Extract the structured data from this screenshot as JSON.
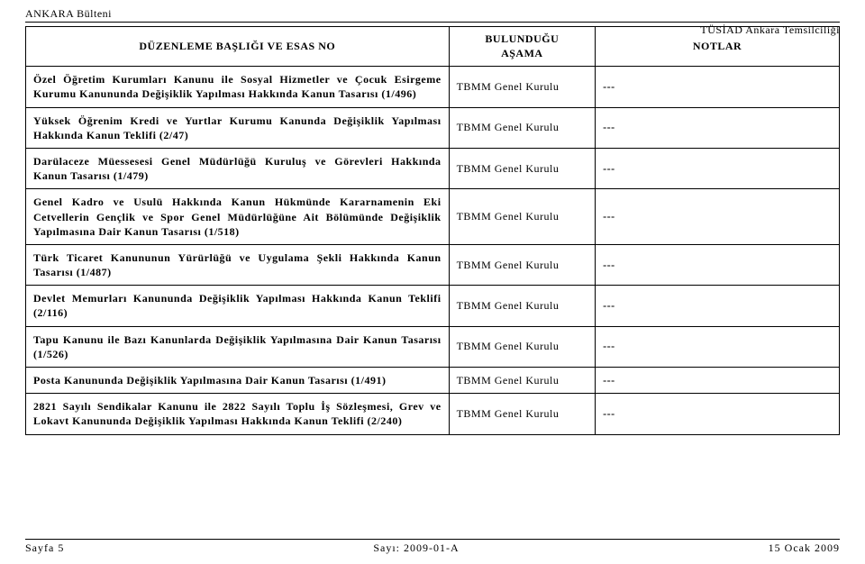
{
  "header": {
    "left": "ANKARA Bülteni",
    "right": "TÜSİAD Ankara Temsilciliği"
  },
  "table": {
    "columns": {
      "title": "DÜZENLEME BAŞLIĞI VE ESAS NO",
      "stage": "BULUNDUĞU\nAŞAMA",
      "notes": "NOTLAR"
    },
    "rows": [
      {
        "title": "Özel Öğretim Kurumları Kanunu ile Sosyal Hizmetler ve Çocuk Esirgeme Kurumu Kanununda Değişiklik Yapılması Hakkında Kanun Tasarısı (1/496)",
        "stage": "TBMM Genel Kurulu",
        "notes": "---"
      },
      {
        "title": "Yüksek Öğrenim Kredi ve Yurtlar Kurumu Kanunda Değişiklik Yapılması Hakkında Kanun Teklifi (2/47)",
        "stage": "TBMM Genel Kurulu",
        "notes": "---"
      },
      {
        "title": "Darülaceze Müessesesi Genel Müdürlüğü Kuruluş ve Görevleri Hakkında Kanun Tasarısı (1/479)",
        "stage": "TBMM Genel Kurulu",
        "notes": "---"
      },
      {
        "title": "Genel Kadro ve Usulü Hakkında Kanun Hükmünde Kararnamenin Eki Cetvellerin Gençlik ve Spor Genel Müdürlüğüne Ait Bölümünde Değişiklik Yapılmasına Dair Kanun Tasarısı (1/518)",
        "stage": "TBMM Genel Kurulu",
        "notes": "---"
      },
      {
        "title": "Türk Ticaret Kanununun Yürürlüğü ve Uygulama Şekli Hakkında Kanun Tasarısı (1/487)",
        "stage": "TBMM Genel Kurulu",
        "notes": "---"
      },
      {
        "title": "Devlet Memurları Kanununda Değişiklik Yapılması Hakkında Kanun Teklifi (2/116)",
        "stage": "TBMM Genel Kurulu",
        "notes": "---"
      },
      {
        "title": "Tapu Kanunu ile Bazı Kanunlarda Değişiklik Yapılmasına Dair Kanun Tasarısı (1/526)",
        "stage": "TBMM Genel Kurulu",
        "notes": "---"
      },
      {
        "title": "Posta Kanununda Değişiklik Yapılmasına Dair Kanun Tasarısı (1/491)",
        "stage": "TBMM Genel Kurulu",
        "notes": "---"
      },
      {
        "title": "2821 Sayılı Sendikalar Kanunu ile 2822 Sayılı Toplu İş Sözleşmesi, Grev ve Lokavt Kanununda Değişiklik Yapılması Hakkında Kanun Teklifi (2/240)",
        "stage": "TBMM Genel Kurulu",
        "notes": "---"
      }
    ]
  },
  "footer": {
    "left": "Sayfa 5",
    "center": "Sayı: 2009-01-A",
    "right": "15 Ocak 2009"
  }
}
